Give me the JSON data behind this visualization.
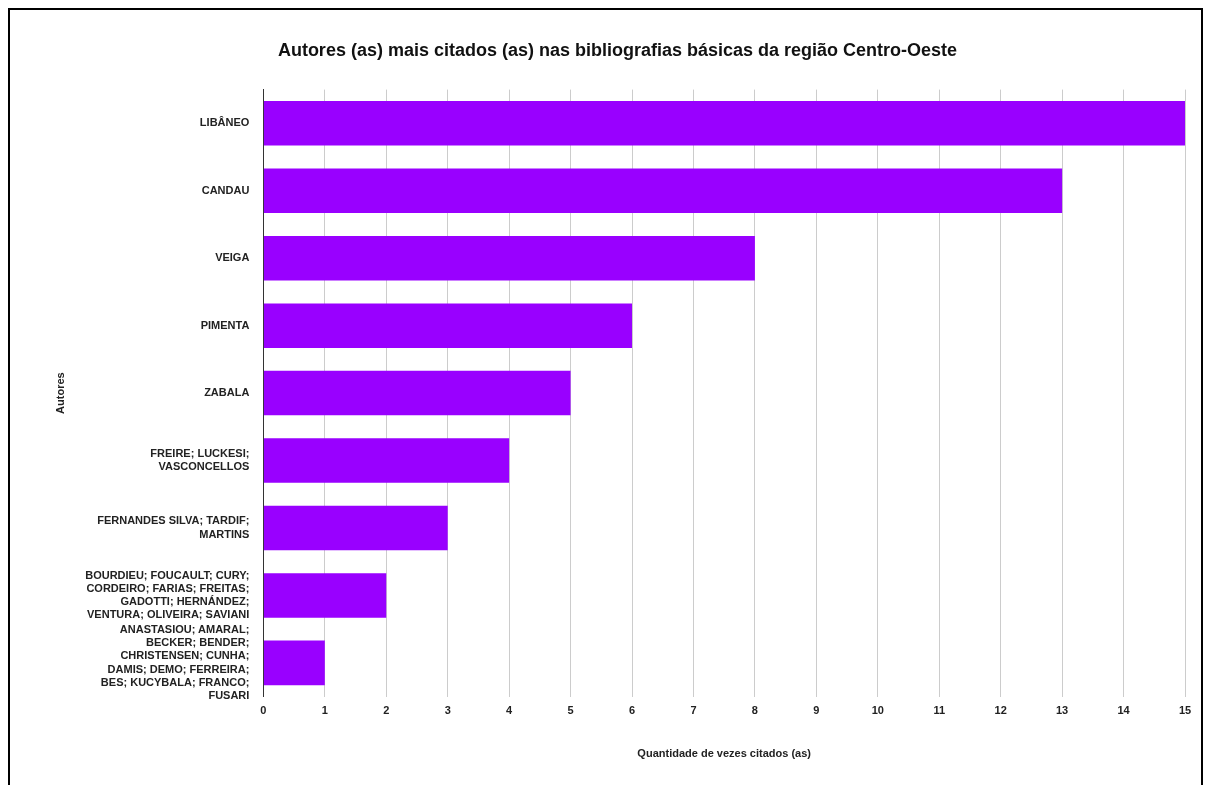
{
  "chart_data": {
    "type": "bar",
    "orientation": "horizontal",
    "title": "Autores (as) mais citados (as) nas bibliografias básicas da região Centro-Oeste",
    "xlabel": "Quantidade de vezes citados (as)",
    "ylabel": "Autores",
    "categories": [
      "LIBÂNEO",
      "CANDAU",
      "VEIGA",
      "PIMENTA",
      "ZABALA",
      "FREIRE; LUCKESI; VASCONCELLOS",
      "FERNANDES SILVA; TARDIF; MARTINS",
      "BOURDIEU; FOUCAULT; CURY; CORDEIRO; FARIAS; FREITAS; GADOTTI; HERNÁNDEZ; VENTURA; OLIVEIRA; SAVIANI",
      "ANASTASIOU; AMARAL; BECKER; BENDER; CHRISTENSEN; CUNHA; DAMIS; DEMO; FERREIRA; BES; KUCYBALA; FRANCO; FUSARI"
    ],
    "values": [
      15,
      13,
      8,
      6,
      5,
      4,
      3,
      2,
      1
    ],
    "color": "#9900ff",
    "xlim": [
      0,
      15
    ],
    "xticks": [
      0,
      1,
      2,
      3,
      4,
      5,
      6,
      7,
      8,
      9,
      10,
      11,
      12,
      13,
      14,
      15
    ],
    "grid": "x"
  }
}
